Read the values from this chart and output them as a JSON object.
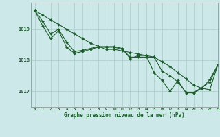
{
  "background_color": "#cce8e8",
  "grid_color": "#aacccc",
  "line_color": "#1a5c2a",
  "marker_color": "#1a5c2a",
  "title": "Graphe pression niveau de la mer (hPa)",
  "xlim": [
    -0.5,
    23
  ],
  "ylim": [
    1016.5,
    1019.85
  ],
  "yticks": [
    1017,
    1018,
    1019
  ],
  "xtick_labels": [
    "0",
    "1",
    "2",
    "3",
    "4",
    "5",
    "6",
    "7",
    "8",
    "9",
    "10",
    "11",
    "12",
    "13",
    "14",
    "15",
    "16",
    "17",
    "18",
    "19",
    "20",
    "21",
    "22",
    "23"
  ],
  "series1_x": [
    0,
    1,
    2,
    3,
    4,
    5,
    6,
    7,
    8,
    9,
    10,
    11,
    12,
    13,
    14,
    15,
    16,
    17,
    18,
    19,
    20,
    21,
    22,
    23
  ],
  "series1_y": [
    1019.6,
    1019.45,
    1019.3,
    1019.15,
    1019.0,
    1018.85,
    1018.7,
    1018.55,
    1018.45,
    1018.35,
    1018.35,
    1018.3,
    1018.25,
    1018.2,
    1018.15,
    1018.1,
    1017.95,
    1017.8,
    1017.6,
    1017.4,
    1017.2,
    1017.1,
    1017.05,
    1017.85
  ],
  "series2_x": [
    0,
    1,
    2,
    3,
    4,
    5,
    6,
    7,
    8,
    9,
    10,
    11,
    12,
    13,
    14,
    15,
    16,
    17,
    18,
    19,
    20,
    21,
    22,
    23
  ],
  "series2_y": [
    1019.6,
    1019.25,
    1018.85,
    1019.0,
    1018.58,
    1018.28,
    1018.32,
    1018.38,
    1018.44,
    1018.44,
    1018.44,
    1018.38,
    1018.05,
    1018.15,
    1018.15,
    1017.6,
    1017.35,
    1017.0,
    1017.35,
    1016.95,
    1016.95,
    1017.1,
    1017.38,
    1017.85
  ],
  "series3_x": [
    0,
    1,
    2,
    3,
    4,
    5,
    6,
    7,
    8,
    9,
    10,
    11,
    12,
    13,
    14,
    15,
    16,
    17,
    18,
    19,
    20,
    21,
    22,
    23
  ],
  "series3_y": [
    1019.6,
    1019.1,
    1018.7,
    1018.95,
    1018.42,
    1018.22,
    1018.28,
    1018.35,
    1018.42,
    1018.42,
    1018.42,
    1018.35,
    1018.1,
    1018.1,
    1018.1,
    1018.1,
    1017.65,
    1017.5,
    1017.3,
    1016.97,
    1016.97,
    1017.12,
    1017.3,
    1017.85
  ]
}
